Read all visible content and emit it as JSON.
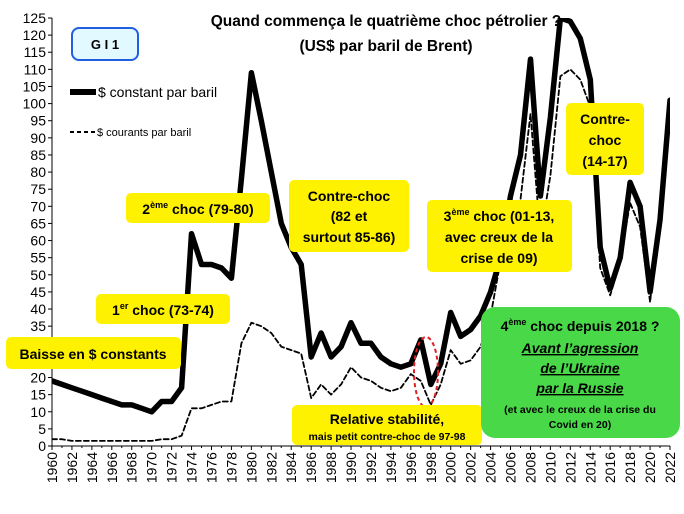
{
  "chart_data": {
    "type": "line",
    "title": "Quand commença le quatrième choc pétrolier ?",
    "subtitle": "(US$ par baril de Brent)",
    "badge": "G I 1",
    "xlabel": "",
    "ylabel": "",
    "xlim": [
      1960,
      2022
    ],
    "ylim": [
      0,
      125
    ],
    "ytick_step": 5,
    "xtick_step": 2,
    "grid": false,
    "legend_placement": "top-left",
    "series": [
      {
        "name": "$ constant par baril",
        "style": "solid",
        "color": "#000000",
        "x": [
          1960,
          1961,
          1962,
          1963,
          1964,
          1965,
          1966,
          1967,
          1968,
          1969,
          1970,
          1971,
          1972,
          1973,
          1974,
          1975,
          1976,
          1977,
          1978,
          1979,
          1980,
          1981,
          1982,
          1983,
          1984,
          1985,
          1986,
          1987,
          1988,
          1989,
          1990,
          1991,
          1992,
          1993,
          1994,
          1995,
          1996,
          1997,
          1998,
          1999,
          2000,
          2001,
          2002,
          2003,
          2004,
          2005,
          2006,
          2007,
          2008,
          2009,
          2010,
          2011,
          2012,
          2013,
          2014,
          2015,
          2016,
          2017,
          2018,
          2019,
          2020,
          2021,
          2022
        ],
        "y": [
          19,
          18,
          17,
          16,
          15,
          14,
          13,
          12,
          12,
          11,
          10,
          13,
          13,
          17,
          62,
          53,
          53,
          52,
          49,
          78,
          109,
          95,
          80,
          65,
          58,
          53,
          26,
          33,
          26,
          29,
          36,
          30,
          30,
          26,
          24,
          23,
          24,
          31,
          18,
          24,
          39,
          32,
          34,
          38,
          45,
          55,
          73,
          85,
          113,
          73,
          96,
          130,
          124,
          119,
          107,
          58,
          46,
          55,
          77,
          70,
          45,
          66,
          101
        ]
      },
      {
        "name": "$ courants par baril",
        "style": "dashed",
        "color": "#000000",
        "x": [
          1960,
          1961,
          1962,
          1963,
          1964,
          1965,
          1966,
          1967,
          1968,
          1969,
          1970,
          1971,
          1972,
          1973,
          1974,
          1975,
          1976,
          1977,
          1978,
          1979,
          1980,
          1981,
          1982,
          1983,
          1984,
          1985,
          1986,
          1987,
          1988,
          1989,
          1990,
          1991,
          1992,
          1993,
          1994,
          1995,
          1996,
          1997,
          1998,
          1999,
          2000,
          2001,
          2002,
          2003,
          2004,
          2005,
          2006,
          2007,
          2008,
          2009,
          2010,
          2011,
          2012,
          2013,
          2014,
          2015,
          2016,
          2017,
          2018,
          2019,
          2020,
          2021,
          2022
        ],
        "y": [
          2,
          2,
          1.5,
          1.5,
          1.5,
          1.5,
          1.5,
          1.5,
          1.5,
          1.5,
          1.5,
          2,
          2,
          3,
          11,
          11,
          12,
          13,
          13,
          30,
          36,
          35,
          33,
          29,
          28,
          27,
          14,
          18,
          15,
          18,
          23,
          20,
          19,
          17,
          16,
          17,
          21,
          19,
          12,
          18,
          28,
          24,
          25,
          29,
          38,
          54,
          65,
          72,
          97,
          61,
          79,
          108,
          110,
          107,
          99,
          52,
          44,
          54,
          71,
          64,
          42,
          70,
          99
        ]
      }
    ],
    "annotations": [
      {
        "text": "Baisse en $ constants"
      },
      {
        "text": "1",
        "sup": "er",
        "rest": " choc (73-74)"
      },
      {
        "text": "2",
        "sup": "ème",
        "rest": " choc (79-80)"
      },
      {
        "lines": [
          "Contre-choc",
          "(82 et",
          "surtout 85-86)"
        ]
      },
      {
        "text": "Relative stabilité,",
        "small": "mais petit contre-choc de 97-98"
      },
      {
        "lines": [
          "3",
          "avec creux de la",
          "crise de 09)"
        ],
        "sup": "ème",
        "rest": " choc (01-13,"
      },
      {
        "lines": [
          "Contre-",
          "choc",
          "(14-17)"
        ]
      },
      {
        "line1_prefix": "4",
        "sup": "ème",
        "line1_rest": " choc depuis 2018 ?",
        "italic_lines": [
          "Avant l’agression",
          "de l’Ukraine",
          "par la Russie"
        ],
        "small_lines": [
          "(et avec le creux de la crise du",
          "Covid en 20)"
        ]
      }
    ],
    "colors": {
      "annotation_fill": "#fff200",
      "green_fill": "#48d848",
      "badge_border": "#1f5fe0",
      "badge_fill": "#e2f9ff",
      "ellipse": "#e02020"
    }
  }
}
